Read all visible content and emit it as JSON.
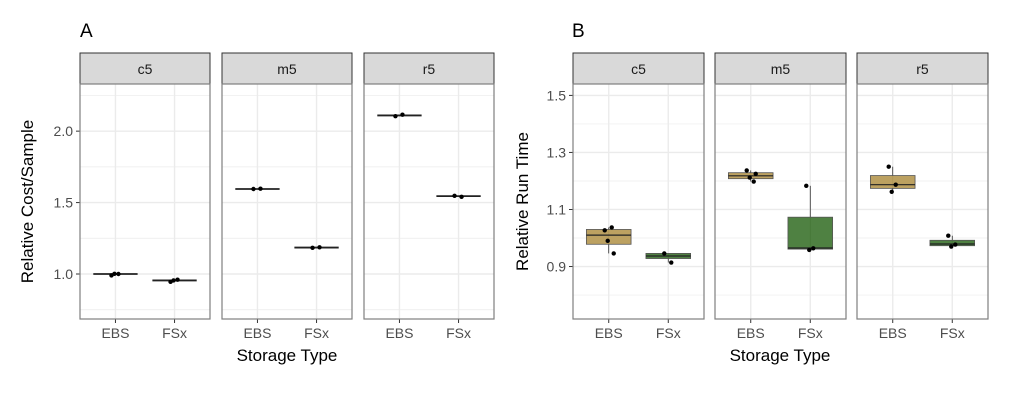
{
  "chart_data": [
    {
      "panel_label": "A",
      "type": "boxplot",
      "ylabel": "Relative Cost/Sample",
      "xlabel": "Storage Type",
      "ylim": [
        0.685,
        2.33
      ],
      "yticks": [
        1.0,
        1.5,
        2.0
      ],
      "ytick_labels": [
        "1.0",
        "1.5",
        "2.0"
      ],
      "grid": true,
      "categories": [
        "EBS",
        "FSx"
      ],
      "facets": [
        {
          "name": "c5",
          "boxes": [
            {
              "category": "EBS",
              "min": 0.99,
              "q1": 1.0,
              "median": 1.0,
              "q3": 1.0,
              "max": 1.0,
              "points": [
                0.99,
                1.0,
                1.001
              ]
            },
            {
              "category": "FSx",
              "min": 0.945,
              "q1": 0.955,
              "median": 0.955,
              "q3": 0.955,
              "max": 0.96,
              "points": [
                0.945,
                0.96,
                0.955
              ]
            }
          ]
        },
        {
          "name": "m5",
          "boxes": [
            {
              "category": "EBS",
              "min": 1.595,
              "q1": 1.595,
              "median": 1.595,
              "q3": 1.595,
              "max": 1.597,
              "points": [
                1.595,
                1.597
              ]
            },
            {
              "category": "FSx",
              "min": 1.183,
              "q1": 1.185,
              "median": 1.185,
              "q3": 1.185,
              "max": 1.187,
              "points": [
                1.183,
                1.187
              ]
            }
          ]
        },
        {
          "name": "r5",
          "boxes": [
            {
              "category": "EBS",
              "min": 2.105,
              "q1": 2.11,
              "median": 2.11,
              "q3": 2.11,
              "max": 2.115,
              "points": [
                2.105,
                2.115
              ]
            },
            {
              "category": "FSx",
              "min": 1.54,
              "q1": 1.545,
              "median": 1.545,
              "q3": 1.545,
              "max": 1.547,
              "points": [
                1.547,
                1.54
              ]
            }
          ]
        }
      ]
    },
    {
      "panel_label": "B",
      "type": "boxplot",
      "ylabel": "Relative Run Time",
      "xlabel": "Storage Type",
      "ylim": [
        0.716,
        1.54
      ],
      "yticks": [
        0.9,
        1.1,
        1.3,
        1.5
      ],
      "ytick_labels": [
        "0.9",
        "1.1",
        "1.3",
        "1.5"
      ],
      "grid": true,
      "categories": [
        "EBS",
        "FSx"
      ],
      "facets": [
        {
          "name": "c5",
          "boxes": [
            {
              "category": "EBS",
              "min": 0.946,
              "q1": 0.978,
              "median": 1.01,
              "q3": 1.03,
              "max": 1.037,
              "points": [
                1.027,
                1.037,
                0.99,
                0.946
              ]
            },
            {
              "category": "FSx",
              "min": 0.914,
              "q1": 0.928,
              "median": 0.937,
              "q3": 0.946,
              "max": 0.946,
              "points": [
                0.946,
                0.914
              ]
            }
          ]
        },
        {
          "name": "m5",
          "boxes": [
            {
              "category": "EBS",
              "min": 1.198,
              "q1": 1.208,
              "median": 1.218,
              "q3": 1.229,
              "max": 1.237,
              "points": [
                1.237,
                1.198,
                1.212,
                1.225
              ]
            },
            {
              "category": "FSx",
              "min": 0.958,
              "q1": 0.961,
              "median": 0.965,
              "q3": 1.073,
              "max": 1.183,
              "points": [
                1.183,
                0.964,
                0.958
              ]
            }
          ]
        },
        {
          "name": "r5",
          "boxes": [
            {
              "category": "EBS",
              "min": 1.162,
              "q1": 1.174,
              "median": 1.187,
              "q3": 1.219,
              "max": 1.25,
              "points": [
                1.25,
                1.187,
                1.162
              ]
            },
            {
              "category": "FSx",
              "min": 0.97,
              "q1": 0.973,
              "median": 0.979,
              "q3": 0.992,
              "max": 1.008,
              "points": [
                1.008,
                0.977,
                0.97
              ]
            }
          ]
        }
      ]
    }
  ],
  "colors": {
    "EBS": "#b89c58",
    "FSx": "#467a38",
    "strip": "#d9d9d9",
    "grid": "#ebebeb",
    "border": "#7f7f7f"
  }
}
